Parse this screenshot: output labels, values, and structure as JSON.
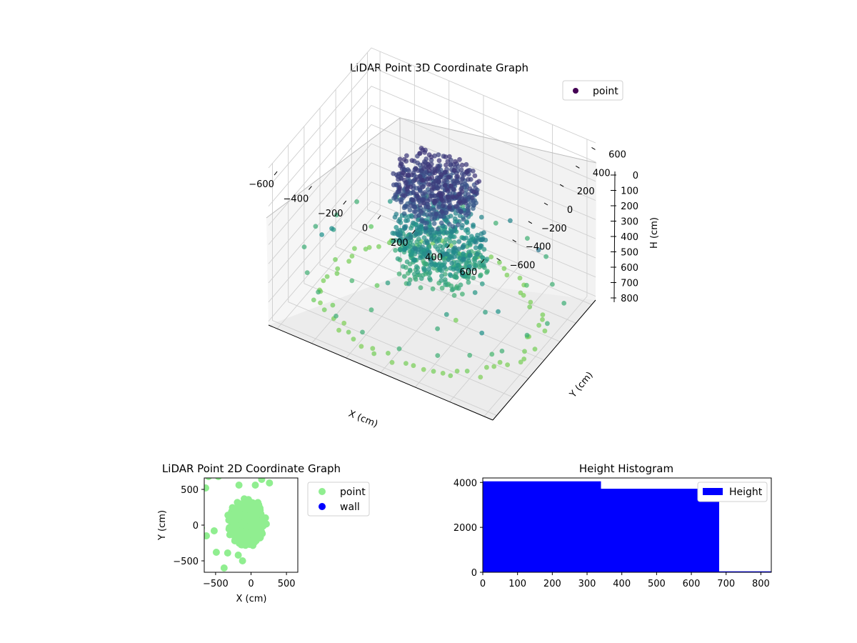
{
  "chart_data": [
    {
      "type": "scatter",
      "title": "LiDAR Point 3D Coordinate Graph",
      "xlabel": "X (cm)",
      "ylabel": "Y (cm)",
      "zlabel": "H (cm)",
      "xticks": [
        "−600",
        "−400",
        "−200",
        "0",
        "200",
        "400",
        "600"
      ],
      "yticks": [
        "−600",
        "−400",
        "−200",
        "0",
        "200",
        "400",
        "600"
      ],
      "zticks": [
        "0",
        "100",
        "200",
        "300",
        "400",
        "500",
        "600",
        "700",
        "800"
      ],
      "xlim": [
        -650,
        650
      ],
      "ylim": [
        -650,
        650
      ],
      "zlim": [
        0,
        820
      ],
      "z_inverted": true,
      "colormap": "viridis",
      "grid": true,
      "legend": {
        "placement": "top-right",
        "entries": [
          {
            "label": "point",
            "color": "#440154"
          }
        ]
      },
      "series": [
        {
          "name": "point",
          "clusters": [
            {
              "part": "upper-mass",
              "x_range": [
                -250,
                200
              ],
              "y_range": [
                -150,
                350
              ],
              "h_range": [
                160,
                310
              ]
            },
            {
              "part": "lower-mass",
              "x_range": [
                -250,
                250
              ],
              "y_range": [
                -150,
                350
              ],
              "h_range": [
                420,
                640
              ]
            }
          ],
          "rings": [
            {
              "h": 800,
              "radii": [
                520,
                600
              ],
              "count": 70
            },
            {
              "h": 640,
              "radii": [
                640,
                700
              ],
              "count": 22
            }
          ]
        }
      ]
    },
    {
      "type": "scatter",
      "title": "LiDAR Point 2D Coordinate Graph",
      "xlabel": "X (cm)",
      "ylabel": "Y (cm)",
      "xticks": [
        "−500",
        "0",
        "500"
      ],
      "yticks": [
        "−500",
        "0",
        "500"
      ],
      "xlim": [
        -660,
        660
      ],
      "ylim": [
        -660,
        660
      ],
      "legend": {
        "placement": "right-outside",
        "entries": [
          {
            "label": "point",
            "color": "#90ee90"
          },
          {
            "label": "wall",
            "color": "#0000ff"
          }
        ]
      },
      "series": [
        {
          "name": "point",
          "color": "#90ee90",
          "blob": {
            "center": [
              -60,
              30
            ],
            "radius_x": 270,
            "radius_y": 340
          },
          "outliers": [
            [
              -490,
              -380
            ],
            [
              -330,
              -390
            ],
            [
              -180,
              -420
            ],
            [
              -120,
              -500
            ],
            [
              -380,
              -600
            ],
            [
              -630,
              -150
            ],
            [
              -520,
              -80
            ],
            [
              -600,
              680
            ],
            [
              -460,
              680
            ],
            [
              -290,
              740
            ],
            [
              -170,
              560
            ],
            [
              60,
              560
            ],
            [
              150,
              640
            ],
            [
              260,
              590
            ],
            [
              -640,
              520
            ],
            [
              -700,
              -40
            ]
          ]
        },
        {
          "name": "wall",
          "color": "#0000ff",
          "points": []
        }
      ]
    },
    {
      "type": "bar",
      "title": "Height Histogram",
      "xlabel": "",
      "ylabel": "",
      "xticks": [
        "0",
        "100",
        "200",
        "300",
        "400",
        "500",
        "600",
        "700",
        "800"
      ],
      "yticks": [
        "0",
        "2000",
        "4000"
      ],
      "xlim": [
        0,
        830
      ],
      "ylim": [
        0,
        4200
      ],
      "color": "#0000ff",
      "legend": {
        "placement": "top-right",
        "entries": [
          {
            "label": "Height",
            "color": "#0000ff"
          }
        ]
      },
      "bins": [
        {
          "start": 0,
          "end": 340,
          "count": 4050
        },
        {
          "start": 340,
          "end": 680,
          "count": 3720
        },
        {
          "start": 680,
          "end": 830,
          "count": 40
        }
      ]
    }
  ]
}
